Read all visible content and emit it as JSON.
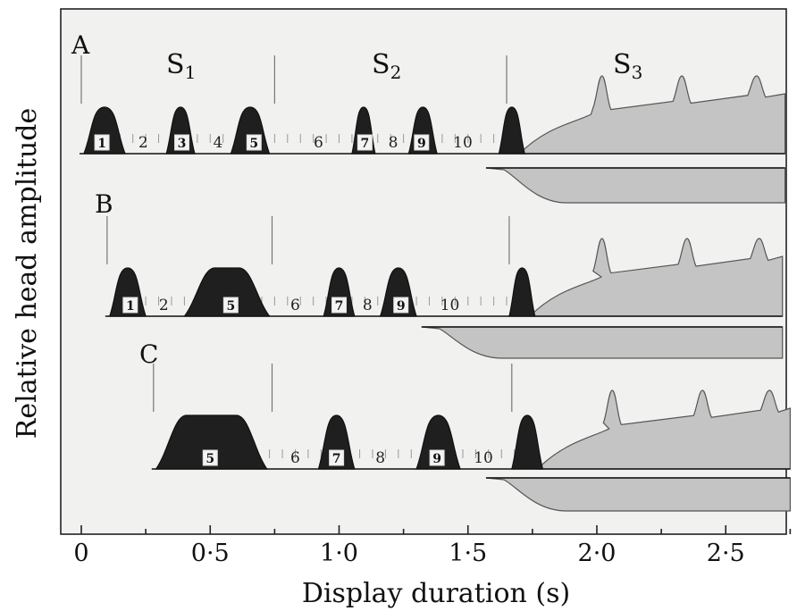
{
  "chart_data": {
    "type": "area",
    "xlabel": "Display duration (s)",
    "ylabel": "Relative head amplitude",
    "x_ticks": [
      "0",
      "0·5",
      "1·0",
      "1·5",
      "2·0",
      "2·5"
    ],
    "xlim": [
      0,
      2.8
    ],
    "stage_labels": [
      {
        "main": "S",
        "sub": "1"
      },
      {
        "main": "S",
        "sub": "2"
      },
      {
        "main": "S",
        "sub": "3"
      }
    ],
    "panels": [
      {
        "label": "A",
        "sequence_labels": [
          {
            "text": "1",
            "at": 0.08,
            "boxed": true
          },
          {
            "text": "2",
            "at": 0.24,
            "boxed": false
          },
          {
            "text": "3",
            "at": 0.39,
            "boxed": true
          },
          {
            "text": "4",
            "at": 0.53,
            "boxed": false
          },
          {
            "text": "5",
            "at": 0.67,
            "boxed": true
          },
          {
            "text": "6",
            "at": 0.92,
            "boxed": false
          },
          {
            "text": "7",
            "at": 1.1,
            "boxed": true
          },
          {
            "text": "8",
            "at": 1.21,
            "boxed": false
          },
          {
            "text": "9",
            "at": 1.32,
            "boxed": true
          },
          {
            "text": "10",
            "at": 1.48,
            "boxed": false
          }
        ],
        "dark_peaks": [
          [
            0.01,
            0.17
          ],
          [
            0.33,
            0.44
          ],
          [
            0.58,
            0.73
          ],
          [
            1.05,
            1.14
          ],
          [
            1.27,
            1.38
          ],
          [
            1.62,
            1.72
          ]
        ],
        "stage_bounds": [
          0.0,
          0.75,
          1.65
        ],
        "s3": {
          "start": 1.7,
          "end": 2.73,
          "sub_peaks": [
            2.02,
            2.33,
            2.62
          ]
        },
        "lower_band": {
          "start": 1.57,
          "end": 2.73
        }
      },
      {
        "label": "B",
        "sequence_labels": [
          {
            "text": "1",
            "at": 0.19,
            "boxed": true
          },
          {
            "text": "2",
            "at": 0.32,
            "boxed": false
          },
          {
            "text": "5",
            "at": 0.58,
            "boxed": true
          },
          {
            "text": "6",
            "at": 0.83,
            "boxed": false
          },
          {
            "text": "7",
            "at": 1.0,
            "boxed": true
          },
          {
            "text": "8",
            "at": 1.11,
            "boxed": false
          },
          {
            "text": "9",
            "at": 1.24,
            "boxed": true
          },
          {
            "text": "10",
            "at": 1.43,
            "boxed": false
          }
        ],
        "dark_peaks": [
          [
            0.11,
            0.25
          ],
          [
            0.4,
            0.73
          ],
          [
            0.94,
            1.06
          ],
          [
            1.16,
            1.3
          ],
          [
            1.66,
            1.76
          ]
        ],
        "stage_bounds": [
          0.1,
          0.74,
          1.66
        ],
        "s3": {
          "start": 1.74,
          "end": 2.72,
          "sub_peaks": [
            2.02,
            2.35,
            2.63
          ]
        },
        "lower_band": {
          "start": 1.32,
          "end": 2.72
        }
      },
      {
        "label": "C",
        "sequence_labels": [
          {
            "text": "5",
            "at": 0.5,
            "boxed": true
          },
          {
            "text": "6",
            "at": 0.83,
            "boxed": false
          },
          {
            "text": "7",
            "at": 0.99,
            "boxed": true
          },
          {
            "text": "8",
            "at": 1.16,
            "boxed": false
          },
          {
            "text": "9",
            "at": 1.38,
            "boxed": true
          },
          {
            "text": "10",
            "at": 1.56,
            "boxed": false
          }
        ],
        "dark_peaks": [
          [
            0.29,
            0.72
          ],
          [
            0.92,
            1.06
          ],
          [
            1.3,
            1.47
          ],
          [
            1.67,
            1.79
          ]
        ],
        "stage_bounds": [
          0.28,
          0.74,
          1.67
        ],
        "s3": {
          "start": 1.77,
          "end": 2.75,
          "sub_peaks": [
            2.06,
            2.41,
            2.67
          ]
        },
        "lower_band": {
          "start": 1.57,
          "end": 2.75
        }
      }
    ]
  }
}
